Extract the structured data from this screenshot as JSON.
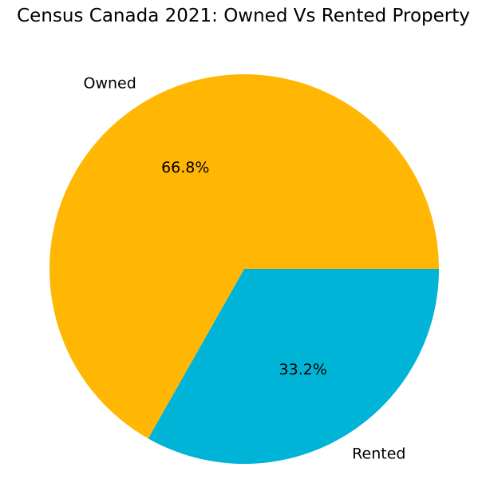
{
  "chart_data": {
    "type": "pie",
    "title": "Census Canada 2021: Owned Vs Rented Property",
    "categories": [
      "Owned",
      "Rented"
    ],
    "values": [
      66.8,
      33.2
    ],
    "value_labels": [
      "66.8%",
      "33.2%"
    ],
    "colors": [
      "#FFB703",
      "#00B4D8"
    ],
    "start_angle_deg": 0,
    "direction": "counterclockwise",
    "legend": "none"
  }
}
